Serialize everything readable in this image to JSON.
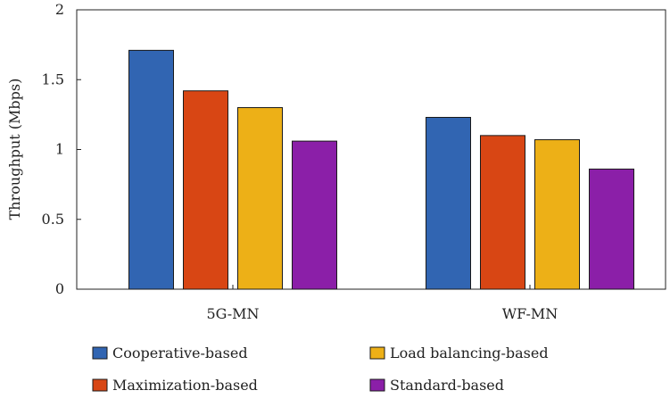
{
  "chart_data": {
    "type": "bar",
    "title": "",
    "xlabel": "",
    "ylabel": "Throughput (Mbps)",
    "ylim": [
      0,
      2
    ],
    "yticks": [
      "0",
      "0.5",
      "1",
      "1.5",
      "2"
    ],
    "categories": [
      "5G-MN",
      "WF-MN"
    ],
    "series": [
      {
        "name": "Cooperative-based",
        "color": "#3165b2",
        "values": [
          1.71,
          1.23
        ]
      },
      {
        "name": "Maximization-based",
        "color": "#d84614",
        "values": [
          1.42,
          1.1
        ]
      },
      {
        "name": "Load balancing-based",
        "color": "#edb017",
        "values": [
          1.3,
          1.07
        ]
      },
      {
        "name": "Standard-based",
        "color": "#8b1fa8",
        "values": [
          1.06,
          0.86
        ]
      }
    ],
    "grid": false,
    "legend_position": "bottom"
  }
}
